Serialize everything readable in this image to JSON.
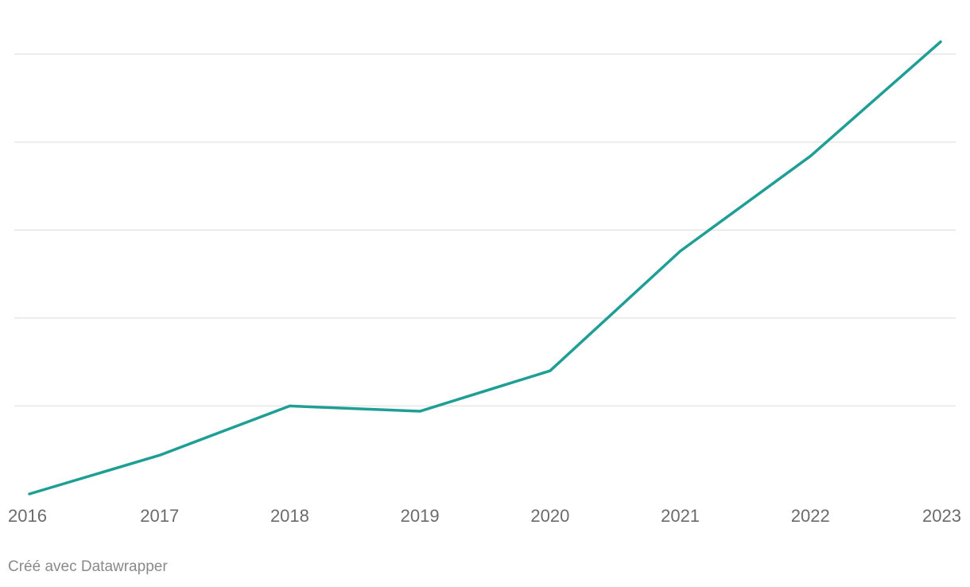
{
  "chart_data": {
    "type": "line",
    "title": "",
    "xlabel": "",
    "ylabel": "",
    "categories": [
      "2016",
      "2017",
      "2018",
      "2019",
      "2020",
      "2021",
      "2022",
      "2023"
    ],
    "series": [
      {
        "values": [
          0,
          11,
          25,
          23.5,
          35,
          69,
          96,
          128.5
        ],
        "color": "#1f9e96"
      }
    ],
    "ylim": [
      0,
      125
    ],
    "y_gridlines": [
      25,
      50,
      75,
      100,
      125
    ],
    "y_tick_labels_shown": false,
    "grid": true,
    "legend": "none"
  },
  "credit": {
    "text": "Créé avec Datawrapper"
  }
}
